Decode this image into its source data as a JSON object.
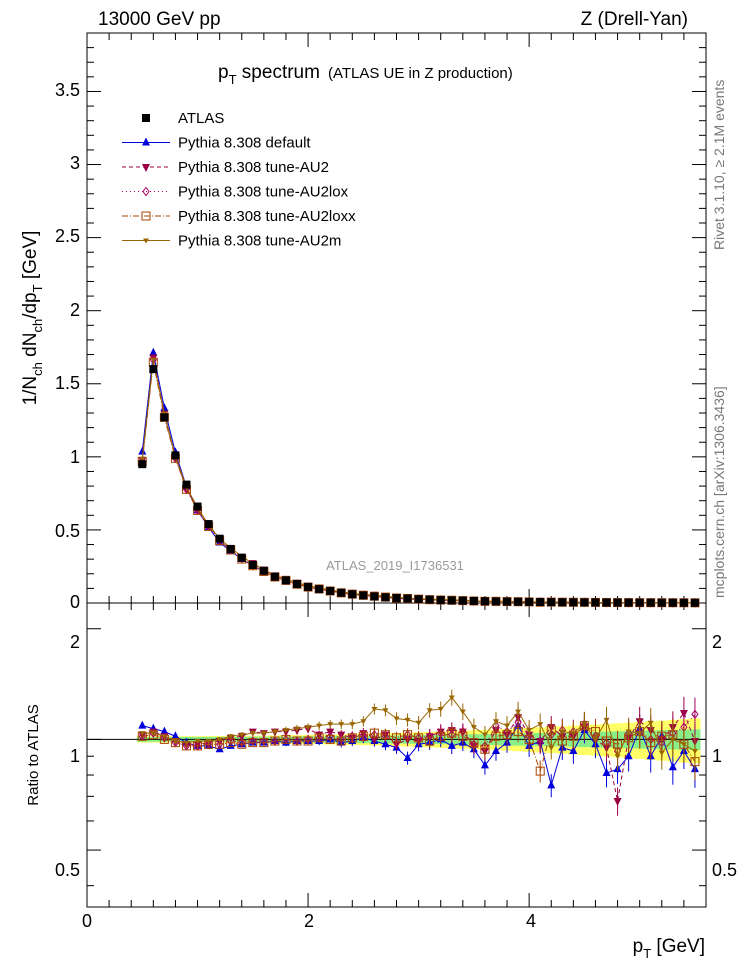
{
  "header": {
    "left": "13000 GeV pp",
    "right": "Z (Drell-Yan)",
    "title_main": "p",
    "title_sub": "T",
    "title_rest": " spectrum",
    "title_paren": "(ATLAS UE in Z production)",
    "watermark": "ATLAS_2019_I1736531",
    "side_rivet": "Rivet 3.1.10, ≥ 2.1M events",
    "side_mcplots": "mcplots.cern.ch [arXiv:1306.3436]"
  },
  "axes": {
    "ylabel_main": "1/N_ch dN_ch/dp_T [GeV]",
    "ylabel_ratio": "Ratio to ATLAS",
    "xlabel": "p_T [GeV]",
    "x_ticks": [
      "0",
      "2",
      "4"
    ],
    "y_ticks_main": [
      "0",
      "0.5",
      "1",
      "1.5",
      "2",
      "2.5",
      "3",
      "3.5"
    ],
    "y_ticks_ratio": [
      "0.5",
      "1",
      "2"
    ]
  },
  "chart_data": {
    "type": "scatter",
    "xlabel": "p_T [GeV]",
    "ylabel": "1/N_ch dN_ch/dp_T [GeV]",
    "xlim": [
      0,
      5.6
    ],
    "ylim": [
      0,
      3.9
    ],
    "ratio_ylim": [
      0.35,
      2.35
    ],
    "x": [
      0.5,
      0.6,
      0.7,
      0.8,
      0.9,
      1.0,
      1.1,
      1.2,
      1.3,
      1.4,
      1.5,
      1.6,
      1.7,
      1.8,
      1.9,
      2.0,
      2.1,
      2.2,
      2.3,
      2.4,
      2.5,
      2.6,
      2.7,
      2.8,
      2.9,
      3.0,
      3.1,
      3.2,
      3.3,
      3.4,
      3.5,
      3.6,
      3.7,
      3.8,
      3.9,
      4.0,
      4.1,
      4.2,
      4.3,
      4.4,
      4.5,
      4.6,
      4.7,
      4.8,
      4.9,
      5.0,
      5.1,
      5.2,
      5.3,
      5.4,
      5.5
    ],
    "reference": {
      "name": "ATLAS",
      "color": "#000000",
      "marker": "square",
      "values": [
        0.95,
        1.6,
        1.27,
        1.01,
        0.81,
        0.66,
        0.54,
        0.44,
        0.37,
        0.31,
        0.26,
        0.22,
        0.18,
        0.155,
        0.13,
        0.11,
        0.095,
        0.082,
        0.07,
        0.06,
        0.052,
        0.045,
        0.039,
        0.034,
        0.03,
        0.026,
        0.023,
        0.02,
        0.018,
        0.016,
        0.014,
        0.012,
        0.011,
        0.0095,
        0.0085,
        0.0075,
        0.0067,
        0.006,
        0.0053,
        0.0047,
        0.0042,
        0.0038,
        0.0034,
        0.003,
        0.0027,
        0.0024,
        0.0022,
        0.002,
        0.0018,
        0.0016,
        0.0015
      ]
    },
    "series": [
      {
        "name": "Pythia 8.308 default",
        "color": "#0000dd",
        "marker": "triangle-up",
        "dash": "",
        "ratio": [
          1.09,
          1.07,
          1.05,
          1.02,
          0.98,
          0.96,
          0.96,
          0.94,
          0.96,
          0.97,
          0.98,
          0.98,
          0.99,
          0.98,
          0.99,
          0.99,
          0.99,
          1.0,
          0.98,
          0.99,
          1.01,
          0.99,
          0.97,
          0.95,
          0.89,
          0.97,
          0.98,
          1.0,
          0.96,
          0.98,
          0.94,
          0.85,
          0.93,
          0.98,
          1.09,
          0.96,
          0.99,
          0.75,
          0.95,
          0.93,
          1.06,
          0.97,
          0.81,
          0.83,
          0.9,
          1.07,
          0.9,
          1.02,
          0.84,
          0.93,
          0.83
        ]
      },
      {
        "name": "Pythia 8.308 tune-AU2",
        "color": "#990044",
        "marker": "triangle-down",
        "dash": "4,3",
        "ratio": [
          1.03,
          1.05,
          1.02,
          0.99,
          0.97,
          0.97,
          0.98,
          0.99,
          1.01,
          1.02,
          1.05,
          1.04,
          1.05,
          1.05,
          1.06,
          1.07,
          1.03,
          1.05,
          1.03,
          1.01,
          1.04,
          1.0,
          1.03,
          0.97,
          1.0,
          0.99,
          1.02,
          1.05,
          1.06,
          1.05,
          0.96,
          0.93,
          1.06,
          1.03,
          1.15,
          1.03,
          0.99,
          1.08,
          1.02,
          1.02,
          1.08,
          1.0,
          0.95,
          0.68,
          1.01,
          1.12,
          1.06,
          1.0,
          1.08,
          1.18,
          0.99
        ]
      },
      {
        "name": "Pythia 8.308 tune-AU2lox",
        "color": "#aa0066",
        "marker": "diamond-open",
        "dash": "1,3",
        "ratio": [
          1.02,
          1.04,
          1.01,
          0.98,
          0.96,
          0.96,
          0.97,
          0.97,
          0.99,
          0.98,
          0.99,
          0.99,
          0.99,
          1.0,
          0.99,
          1.0,
          1.01,
          1.02,
          1.0,
          1.02,
          1.02,
          1.03,
          1.02,
          0.98,
          1.03,
          1.01,
          1.02,
          1.04,
          1.03,
          1.05,
          0.97,
          0.96,
          1.09,
          1.05,
          1.11,
          1.02,
          0.98,
          1.03,
          1.06,
          1.05,
          1.1,
          1.02,
          0.98,
          0.93,
          1.04,
          1.05,
          1.0,
          0.98,
          1.04,
          1.08,
          1.17
        ]
      },
      {
        "name": "Pythia 8.308 tune-AU2loxx",
        "color": "#aa4400",
        "marker": "square-open",
        "dash": "6,2,1,2",
        "ratio": [
          1.02,
          1.03,
          1.0,
          0.98,
          0.96,
          0.96,
          0.97,
          0.97,
          0.98,
          0.97,
          0.98,
          0.98,
          0.99,
          1.0,
          0.99,
          0.99,
          1.01,
          1.0,
          0.99,
          1.01,
          1.02,
          1.04,
          1.03,
          1.01,
          1.03,
          1.01,
          0.99,
          1.02,
          1.04,
          1.02,
          0.98,
          0.94,
          1.02,
          1.03,
          1.05,
          1.0,
          0.82,
          1.06,
          0.99,
          1.02,
          1.09,
          1.05,
          0.99,
          0.97,
          1.01,
          1.05,
          0.98,
          1.02,
          1.03,
          0.97,
          0.87
        ]
      },
      {
        "name": "Pythia 8.308 tune-AU2m",
        "color": "#996600",
        "marker": "star",
        "dash": "",
        "ratio": [
          1.04,
          1.04,
          1.02,
          0.99,
          0.98,
          0.99,
          0.99,
          1.0,
          1.02,
          1.03,
          1.04,
          1.04,
          1.05,
          1.06,
          1.07,
          1.08,
          1.09,
          1.1,
          1.1,
          1.1,
          1.12,
          1.21,
          1.2,
          1.14,
          1.13,
          1.11,
          1.2,
          1.21,
          1.3,
          1.19,
          1.08,
          1.03,
          1.12,
          1.09,
          1.19,
          1.06,
          1.1,
          0.95,
          1.05,
          1.04,
          1.1,
          1.0,
          1.13,
          0.9,
          1.05,
          1.04,
          1.11,
          0.92,
          1.0,
          0.97,
          0.93
        ]
      }
    ],
    "band_colors": {
      "stat": "#88ee88",
      "syst": "#ffff66"
    }
  }
}
